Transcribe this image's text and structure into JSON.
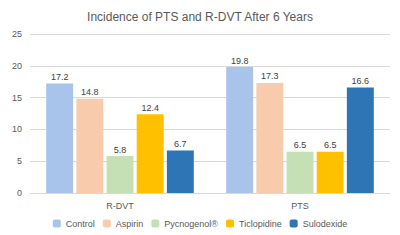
{
  "chart_data": {
    "type": "bar",
    "title": "Incidence of PTS and R-DVT After 6 Years",
    "categories": [
      "R-DVT",
      "PTS"
    ],
    "series": [
      {
        "name": "Control",
        "color": "#a9c4eb",
        "values": [
          17.2,
          19.8
        ]
      },
      {
        "name": "Aspirin",
        "color": "#f8cbad",
        "values": [
          14.8,
          17.3
        ]
      },
      {
        "name": "Pycnogenol®",
        "color": "#c5e0b4",
        "values": [
          5.8,
          6.5
        ]
      },
      {
        "name": "Ticlopidine",
        "color": "#ffc000",
        "values": [
          12.4,
          6.5
        ]
      },
      {
        "name": "Sulodexide",
        "color": "#2e75b6",
        "values": [
          6.7,
          16.6
        ]
      }
    ],
    "ylim": [
      0,
      25
    ],
    "yticks": [
      0,
      5,
      10,
      15,
      20,
      25
    ],
    "grid": true,
    "legend": "bottom",
    "data_labels": true
  }
}
